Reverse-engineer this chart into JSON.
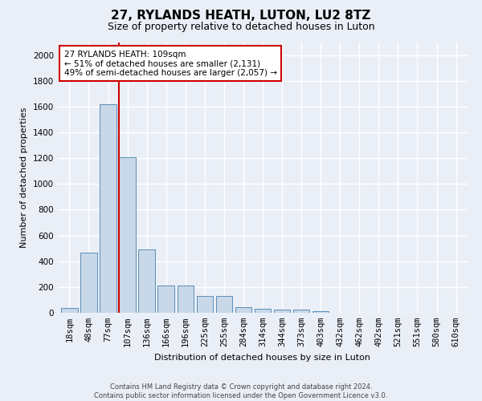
{
  "title": "27, RYLANDS HEATH, LUTON, LU2 8TZ",
  "subtitle": "Size of property relative to detached houses in Luton",
  "xlabel": "Distribution of detached houses by size in Luton",
  "ylabel": "Number of detached properties",
  "categories": [
    "18sqm",
    "48sqm",
    "77sqm",
    "107sqm",
    "136sqm",
    "166sqm",
    "196sqm",
    "225sqm",
    "255sqm",
    "284sqm",
    "314sqm",
    "344sqm",
    "373sqm",
    "403sqm",
    "432sqm",
    "462sqm",
    "492sqm",
    "521sqm",
    "551sqm",
    "580sqm",
    "610sqm"
  ],
  "values": [
    35,
    465,
    1620,
    1210,
    490,
    210,
    210,
    130,
    130,
    45,
    30,
    22,
    22,
    15,
    0,
    0,
    0,
    0,
    0,
    0,
    0
  ],
  "bar_color": "#c8d8e8",
  "bar_edge_color": "#5b8db8",
  "redline_index": 3,
  "annotation_text": "27 RYLANDS HEATH: 109sqm\n← 51% of detached houses are smaller (2,131)\n49% of semi-detached houses are larger (2,057) →",
  "annotation_box_color": "#ffffff",
  "annotation_box_edge": "#cc0000",
  "redline_color": "#cc0000",
  "ylim": [
    0,
    2100
  ],
  "yticks": [
    0,
    200,
    400,
    600,
    800,
    1000,
    1200,
    1400,
    1600,
    1800,
    2000
  ],
  "footer": "Contains HM Land Registry data © Crown copyright and database right 2024.\nContains public sector information licensed under the Open Government Licence v3.0.",
  "bg_color": "#eaeff7",
  "plot_bg_color": "#eaeff7",
  "grid_color": "#ffffff",
  "title_fontsize": 11,
  "subtitle_fontsize": 9,
  "axis_label_fontsize": 8,
  "tick_fontsize": 7.5,
  "footer_fontsize": 6
}
